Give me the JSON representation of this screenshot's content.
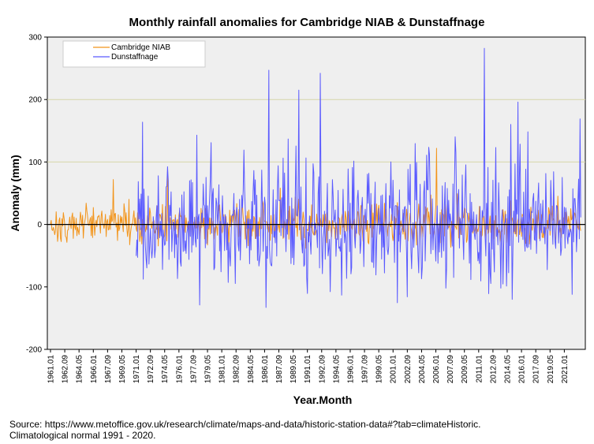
{
  "chart_data": {
    "type": "line",
    "title": "Monthly rainfall anomalies for Cambridge NIAB & Dunstaffnage",
    "xlabel": "Year.Month",
    "ylabel": "Anomaly (mm)",
    "ylim": [
      -200,
      300
    ],
    "yticks": [
      -200,
      -100,
      0,
      100,
      200,
      300
    ],
    "gridlines_y": [
      100,
      200
    ],
    "reference_line_y": 0,
    "legend_position": "top-left",
    "x_start_year": 1961,
    "x_end_year": 2022.9,
    "xtick_labels": [
      "1961.01",
      "1962.09",
      "1964.05",
      "1966.01",
      "1967.09",
      "1969.05",
      "1971.01",
      "1972.09",
      "1974.05",
      "1976.01",
      "1977.09",
      "1979.05",
      "1981.01",
      "1982.09",
      "1984.05",
      "1986.01",
      "1987.09",
      "1989.05",
      "1991.01",
      "1992.09",
      "1994.05",
      "1996.01",
      "1997.09",
      "1999.05",
      "2001.01",
      "2002.09",
      "2004.05",
      "2006.01",
      "2007.09",
      "2009.05",
      "2011.01",
      "2012.09",
      "2014.05",
      "2016.01",
      "2017.09",
      "2019.05",
      "2021.01"
    ],
    "series": [
      {
        "name": "Cambridge NIAB",
        "color": "#f2941a",
        "x_start": 1961.0,
        "x_end": 2022.9,
        "amplitude": 50,
        "notable_points": [
          [
            2006.1,
            122
          ],
          [
            1974.7,
            84
          ],
          [
            1968.3,
            72
          ]
        ]
      },
      {
        "name": "Dunstaffnage",
        "color": "#5a5aff",
        "x_start": 1971.0,
        "x_end": 2022.9,
        "amplitude": 160,
        "notable_points": [
          [
            2011.7,
            282
          ],
          [
            1986.5,
            247
          ],
          [
            1992.5,
            242
          ],
          [
            1990.0,
            215
          ],
          [
            2015.6,
            196
          ],
          [
            1986.2,
            -133
          ],
          [
            1978.4,
            -129
          ],
          [
            2014.9,
            -120
          ],
          [
            2021.9,
            -112
          ]
        ]
      }
    ]
  },
  "source": {
    "line1": "Source: https://www.metoffice.gov.uk/research/climate/maps-and-data/historic-station-data#?tab=climateHistoric.",
    "line2": "Climatological normal 1991 - 2020."
  }
}
